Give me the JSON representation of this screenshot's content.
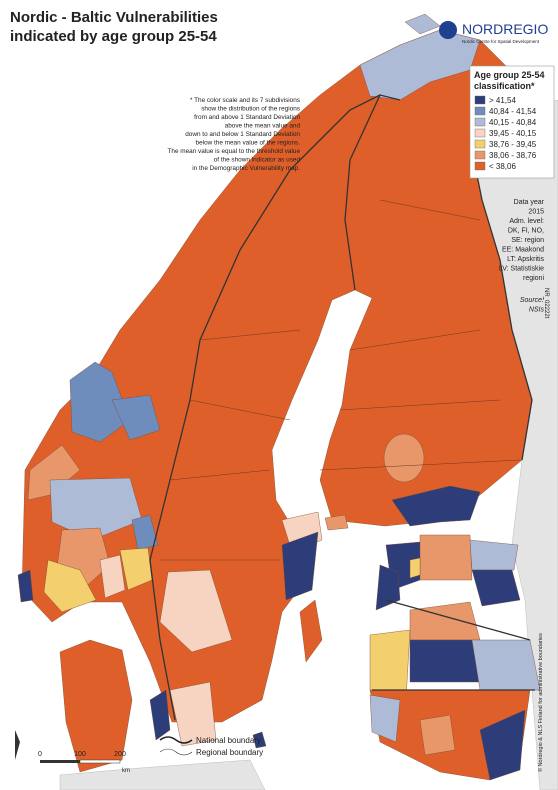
{
  "title": [
    "Nordic - Baltic Vulnerabilities",
    "indicated by age group 25-54"
  ],
  "logo": {
    "name": "NORDREGIO",
    "subtitle": "Nordic Centre for Spatial Development"
  },
  "note": [
    "* The color scale and its 7 subdivisions",
    "show the distribution of the regions",
    "from and above 1 Standard Deviation",
    "above the mean value and",
    "down to and below 1 Standard Deviation",
    "below the mean value of the regions.",
    "The mean value is equal to the threshold value",
    "of the shown indicator as used",
    "in the Demographic Vulnerability map."
  ],
  "legend": {
    "title": [
      "Age group 25-54",
      "classification*"
    ],
    "items": [
      {
        "label": "> 41,54",
        "color": "#2c3d7a"
      },
      {
        "label": "40,84 - 41,54",
        "color": "#6e8dbd"
      },
      {
        "label": "40,15 - 40,84",
        "color": "#adbbd7"
      },
      {
        "label": "39,45 - 40,15",
        "color": "#f7d3c1"
      },
      {
        "label": "38,76 - 39,45",
        "color": "#f4cf6e"
      },
      {
        "label": "38,06 - 38,76",
        "color": "#e8976a"
      },
      {
        "label": "< 38,06",
        "color": "#df5f2a"
      }
    ]
  },
  "info": [
    "Data year",
    "2015",
    "Adm. level:",
    "DK, FI, NO,",
    "SE: region",
    "EE: Maakond",
    "LT: Apskritis",
    "LV: Statistiskie",
    "regioni"
  ],
  "source": [
    "Source:",
    "NSIs"
  ],
  "map_id": "NR_02222t",
  "scale": {
    "labels": [
      "0",
      "100",
      "200"
    ],
    "unit": "km"
  },
  "boundaries": [
    "National boundary",
    "Regional boundary"
  ],
  "copyright": "© Nordregio & NLS Finland for administrative boundaries"
}
